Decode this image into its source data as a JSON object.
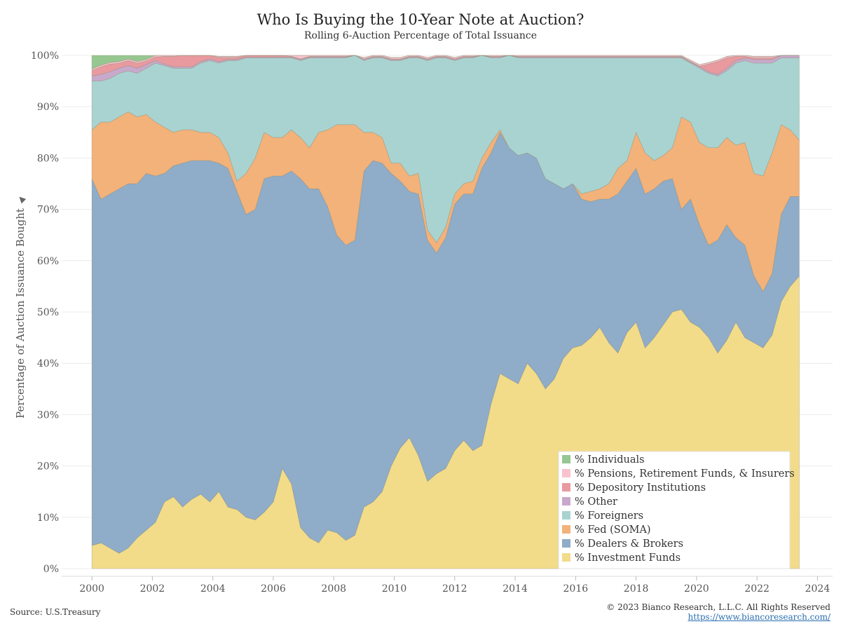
{
  "title": "Who Is Buying the 10-Year Note at Auction?",
  "subtitle": "Rolling 6-Auction Percentage of Total Issuance",
  "ylabel": "Percentage of Auction Issuance Bought",
  "pin_icon": "pin-icon",
  "source": "Source: U.S.Treasury",
  "copyright": "© 2023 Bianco Research, L.L.C. All Rights Reserved",
  "website": "https://www.biancoresearch.com/",
  "chart_data": {
    "type": "area",
    "stacked": true,
    "x": [
      2000.0,
      2000.3,
      2000.6,
      2000.9,
      2001.2,
      2001.5,
      2001.8,
      2002.1,
      2002.4,
      2002.7,
      2003.0,
      2003.3,
      2003.6,
      2003.9,
      2004.2,
      2004.5,
      2004.8,
      2005.1,
      2005.4,
      2005.7,
      2006.0,
      2006.3,
      2006.6,
      2006.9,
      2007.2,
      2007.5,
      2007.8,
      2008.1,
      2008.4,
      2008.7,
      2009.0,
      2009.3,
      2009.6,
      2009.9,
      2010.2,
      2010.5,
      2010.8,
      2011.1,
      2011.4,
      2011.7,
      2012.0,
      2012.3,
      2012.6,
      2012.9,
      2013.2,
      2013.5,
      2013.8,
      2014.1,
      2014.4,
      2014.7,
      2015.0,
      2015.3,
      2015.6,
      2015.9,
      2016.2,
      2016.5,
      2016.8,
      2017.1,
      2017.4,
      2017.7,
      2018.0,
      2018.3,
      2018.6,
      2018.9,
      2019.2,
      2019.5,
      2019.8,
      2020.1,
      2020.4,
      2020.7,
      2021.0,
      2021.3,
      2021.6,
      2021.9,
      2022.2,
      2022.5,
      2022.8,
      2023.1,
      2023.4
    ],
    "series": [
      {
        "name": "% Investment Funds",
        "color": "#f2dc8a",
        "values": [
          4.5,
          5.0,
          4.0,
          3.0,
          4.0,
          6.0,
          7.5,
          9.0,
          13.0,
          14.0,
          12.0,
          13.5,
          14.5,
          13.0,
          15.0,
          12.0,
          11.5,
          10.0,
          9.5,
          11.0,
          13.0,
          19.5,
          16.5,
          8.0,
          6.0,
          5.0,
          7.5,
          7.0,
          5.5,
          6.5,
          12.0,
          13.0,
          15.0,
          20.0,
          23.5,
          25.5,
          22.0,
          17.0,
          18.5,
          19.5,
          23.0,
          25.0,
          23.0,
          24.0,
          32.0,
          38.0,
          37.0,
          36.0,
          40.0,
          38.0,
          35.0,
          37.0,
          41.0,
          43.0,
          43.5,
          45.0,
          47.0,
          44.0,
          42.0,
          46.0,
          48.0,
          43.0,
          45.0,
          47.5,
          50.0,
          50.5,
          48.0,
          47.0,
          45.0,
          42.0,
          44.5,
          48.0,
          45.0,
          44.0,
          43.0,
          45.5,
          52.0,
          55.0,
          57.0
        ]
      },
      {
        "name": "% Dealers & Brokers",
        "color": "#8facc8",
        "values": [
          71.5,
          67.0,
          69.0,
          71.0,
          71.0,
          69.0,
          69.5,
          67.5,
          64.0,
          64.5,
          67.0,
          66.0,
          65.0,
          66.5,
          64.0,
          66.0,
          62.0,
          59.0,
          60.5,
          65.0,
          63.5,
          57.0,
          61.0,
          68.0,
          68.0,
          69.0,
          63.0,
          58.0,
          57.5,
          57.5,
          65.5,
          66.5,
          64.0,
          57.0,
          52.0,
          48.0,
          51.0,
          47.0,
          43.0,
          45.0,
          48.0,
          48.0,
          50.0,
          54.0,
          49.0,
          47.0,
          45.0,
          44.5,
          41.0,
          42.0,
          41.0,
          38.0,
          33.0,
          32.0,
          28.5,
          26.5,
          25.0,
          28.0,
          31.0,
          29.5,
          30.0,
          30.0,
          29.0,
          28.0,
          26.0,
          19.5,
          24.0,
          20.0,
          18.0,
          22.0,
          22.5,
          16.5,
          18.0,
          13.0,
          11.0,
          12.0,
          17.0,
          17.5,
          15.5
        ]
      },
      {
        "name": "% Fed (SOMA)",
        "color": "#f2b27a",
        "values": [
          9.5,
          15.0,
          14.0,
          14.0,
          14.0,
          13.0,
          11.5,
          10.5,
          9.0,
          6.5,
          6.5,
          6.0,
          5.5,
          5.5,
          5.0,
          3.0,
          2.0,
          8.0,
          10.0,
          9.0,
          7.5,
          7.5,
          8.0,
          8.0,
          8.0,
          11.0,
          15.0,
          21.5,
          23.5,
          22.5,
          7.5,
          5.5,
          5.0,
          2.0,
          3.5,
          3.0,
          4.0,
          2.0,
          2.0,
          2.0,
          2.0,
          2.0,
          2.5,
          2.0,
          2.0,
          0.5,
          0.0,
          0.0,
          0.0,
          0.0,
          0.0,
          0.0,
          0.0,
          0.0,
          1.0,
          2.0,
          2.0,
          3.0,
          5.0,
          4.0,
          7.0,
          8.0,
          5.5,
          5.0,
          6.0,
          18.0,
          15.0,
          16.0,
          19.0,
          18.0,
          17.0,
          18.0,
          20.0,
          20.0,
          22.5,
          23.5,
          17.5,
          13.0,
          11.0
        ]
      },
      {
        "name": "% Foreigners",
        "color": "#a9d3d0",
        "values": [
          9.5,
          8.0,
          8.5,
          8.5,
          8.0,
          8.5,
          9.0,
          11.5,
          12.0,
          12.5,
          12.0,
          12.0,
          13.5,
          14.0,
          14.5,
          18.0,
          23.5,
          22.5,
          19.5,
          14.5,
          15.5,
          15.5,
          14.0,
          15.0,
          17.5,
          14.5,
          14.0,
          13.0,
          13.0,
          13.5,
          14.0,
          14.5,
          15.5,
          20.0,
          20.0,
          23.0,
          22.5,
          33.0,
          36.0,
          33.0,
          26.0,
          24.5,
          24.0,
          20.0,
          16.5,
          14.0,
          18.0,
          19.0,
          18.5,
          19.5,
          23.5,
          24.5,
          25.5,
          24.5,
          26.5,
          26.0,
          25.5,
          24.5,
          21.5,
          20.0,
          14.5,
          18.5,
          20.0,
          19.0,
          17.5,
          11.5,
          11.5,
          14.5,
          14.5,
          14.0,
          13.0,
          16.0,
          16.0,
          21.5,
          22.0,
          17.5,
          13.0,
          14.0,
          16.0
        ]
      },
      {
        "name": "% Other",
        "color": "#c9a9cb",
        "values": [
          1.0,
          1.3,
          1.3,
          1.0,
          1.0,
          1.0,
          0.7,
          0.5,
          0.3,
          0.3,
          0.3,
          0.3,
          0.3,
          0.3,
          0.3,
          0.2,
          0.2,
          0.2,
          0.2,
          0.2,
          0.2,
          0.2,
          0.2,
          0.2,
          0.2,
          0.2,
          0.2,
          0.2,
          0.2,
          0.2,
          0.2,
          0.2,
          0.2,
          0.2,
          0.2,
          0.2,
          0.2,
          0.2,
          0.2,
          0.2,
          0.2,
          0.2,
          0.2,
          0.2,
          0.2,
          0.2,
          0.2,
          0.2,
          0.2,
          0.2,
          0.2,
          0.2,
          0.2,
          0.2,
          0.2,
          0.2,
          0.2,
          0.2,
          0.2,
          0.2,
          0.2,
          0.2,
          0.2,
          0.2,
          0.2,
          0.2,
          0.2,
          0.3,
          0.3,
          0.3,
          0.5,
          0.5,
          0.5,
          0.7,
          0.7,
          0.7,
          0.8,
          0.8,
          0.6
        ]
      },
      {
        "name": "% Depository Institutions",
        "color": "#e89a9e",
        "values": [
          1.0,
          1.5,
          1.5,
          1.0,
          1.0,
          1.0,
          0.7,
          0.7,
          1.5,
          2.0,
          3.3,
          3.0,
          1.2,
          0.8,
          0.8,
          0.4,
          0.4,
          0.5,
          0.5,
          0.5,
          0.5,
          0.3,
          0.1,
          0.1,
          0.1,
          0.1,
          0.1,
          0.1,
          0.1,
          0.1,
          0.1,
          0.1,
          0.1,
          0.1,
          0.1,
          0.1,
          0.1,
          0.1,
          0.1,
          0.1,
          0.1,
          0.1,
          0.1,
          0.1,
          0.1,
          0.1,
          0.1,
          0.1,
          0.1,
          0.1,
          0.1,
          0.1,
          0.1,
          0.1,
          0.1,
          0.1,
          0.1,
          0.1,
          0.1,
          0.1,
          0.1,
          0.1,
          0.1,
          0.1,
          0.1,
          0.1,
          0.1,
          0.1,
          1.5,
          2.5,
          2.0,
          0.8,
          0.3,
          0.3,
          0.3,
          0.3,
          0.3,
          0.3,
          0.2
        ]
      },
      {
        "name": "% Pensions, Retirement Funds, & Insurers",
        "color": "#f8c3cd",
        "values": [
          0.3,
          0.3,
          0.3,
          0.3,
          0.3,
          0.3,
          0.3,
          0.3,
          0.2,
          0.2,
          0.2,
          0.2,
          0.2,
          0.2,
          0.2,
          0.2,
          0.2,
          0.2,
          0.3,
          0.3,
          0.3,
          0.5,
          0.8,
          1.0,
          0.5,
          0.3,
          0.3,
          0.3,
          0.3,
          0.3,
          0.3,
          0.3,
          0.3,
          0.3,
          0.3,
          0.3,
          0.3,
          0.3,
          0.3,
          0.3,
          0.3,
          0.3,
          0.3,
          0.3,
          0.3,
          0.3,
          0.3,
          0.3,
          0.3,
          0.3,
          0.3,
          0.3,
          0.3,
          0.3,
          0.3,
          0.3,
          0.3,
          0.3,
          0.3,
          0.3,
          0.3,
          0.3,
          0.3,
          0.3,
          0.3,
          0.3,
          0.3,
          0.3,
          0.3,
          0.3,
          0.3,
          0.3,
          0.3,
          0.3,
          0.3,
          0.3,
          0.3,
          0.3,
          0.3
        ]
      },
      {
        "name": "% Individuals",
        "color": "#96c791",
        "values": [
          2.7,
          1.9,
          1.4,
          1.2,
          0.7,
          1.2,
          1.1,
          0.0,
          0.0,
          0.0,
          0.0,
          0.0,
          0.0,
          0.0,
          0.0,
          0.0,
          0.0,
          0.0,
          0.0,
          0.0,
          0.0,
          0.0,
          0.0,
          0.0,
          0.0,
          0.0,
          0.0,
          0.0,
          0.0,
          0.0,
          0.0,
          0.0,
          0.0,
          0.0,
          0.0,
          0.0,
          0.0,
          0.0,
          0.0,
          0.0,
          0.0,
          0.0,
          0.0,
          0.0,
          0.0,
          0.0,
          0.0,
          0.0,
          0.0,
          0.0,
          0.0,
          0.0,
          0.0,
          0.0,
          0.0,
          0.0,
          0.0,
          0.0,
          0.0,
          0.0,
          0.0,
          0.0,
          0.0,
          0.0,
          0.0,
          0.0,
          0.0,
          0.0,
          0.0,
          0.0,
          0.0,
          0.0,
          0.0,
          0.0,
          0.0,
          0.0,
          0.0,
          0.0,
          0.0
        ]
      }
    ],
    "legend_order": [
      "% Individuals",
      "% Pensions, Retirement Funds, & Insurers",
      "% Depository Institutions",
      "% Other",
      "% Foreigners",
      "% Fed (SOMA)",
      "% Dealers & Brokers",
      "% Investment Funds"
    ],
    "legend_position": "bottom-right",
    "x_ticks": [
      2000,
      2002,
      2004,
      2006,
      2008,
      2010,
      2012,
      2014,
      2016,
      2018,
      2020,
      2022,
      2024
    ],
    "y_ticks": [
      0,
      10,
      20,
      30,
      40,
      50,
      60,
      70,
      80,
      90,
      100
    ],
    "y_tick_suffix": "%",
    "xlim": [
      1999.0,
      2024.5
    ],
    "ylim": [
      -1.5,
      101.5
    ],
    "grid": true
  }
}
